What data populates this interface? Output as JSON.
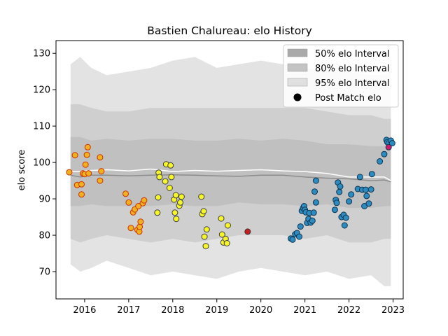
{
  "chart_data": {
    "type": "scatter",
    "title": "Bastien Chalureau: elo History",
    "xlabel": "",
    "ylabel": "elo score",
    "xlim": [
      2015.35,
      2023.23
    ],
    "ylim": [
      62.5,
      133.5
    ],
    "x_ticks": [
      2016,
      2017,
      2018,
      2019,
      2020,
      2021,
      2022,
      2023
    ],
    "x_tick_labels": [
      "2016",
      "2017",
      "2018",
      "2019",
      "2020",
      "2021",
      "2022",
      "2023"
    ],
    "y_ticks": [
      70,
      80,
      90,
      100,
      110,
      120,
      130
    ],
    "y_tick_labels": [
      "70",
      "80",
      "90",
      "100",
      "110",
      "120",
      "130"
    ],
    "legend": {
      "position": "top-right",
      "entries": [
        {
          "label": "50% elo Interval",
          "color": "#aaaaaa",
          "kind": "patch"
        },
        {
          "label": "80% elo Interval",
          "color": "#c4c4c4",
          "kind": "patch"
        },
        {
          "label": "95% elo Interval",
          "color": "#e0e0e0",
          "kind": "patch"
        },
        {
          "label": "Post Match elo",
          "color": "#000000",
          "kind": "marker"
        }
      ]
    },
    "colors": {
      "band95": "#e3e3e3",
      "band80": "#cfcfcf",
      "band50": "#c0c0c0",
      "mean_line": "#ffffff",
      "median_line": "#8c8c8c"
    },
    "bands": {
      "x": [
        2015.68,
        2015.9,
        2016.15,
        2016.5,
        2017.0,
        2017.5,
        2018.0,
        2018.5,
        2019.0,
        2019.5,
        2020.0,
        2020.5,
        2021.0,
        2021.5,
        2022.0,
        2022.5,
        2022.8,
        2022.95
      ],
      "lo95": [
        72.0,
        70.0,
        71.0,
        73.0,
        71.0,
        69.0,
        70.0,
        69.0,
        68.0,
        70.0,
        71.0,
        70.0,
        69.0,
        70.0,
        68.0,
        69.0,
        66.0,
        66.0
      ],
      "hi95": [
        127.0,
        129.0,
        126.0,
        124.0,
        125.0,
        126.0,
        128.0,
        129.0,
        126.0,
        127.0,
        128.0,
        127.0,
        126.0,
        125.0,
        125.0,
        124.0,
        124.0,
        125.0
      ],
      "lo80": [
        79.0,
        78.0,
        79.0,
        80.0,
        79.0,
        78.0,
        79.0,
        78.0,
        79.0,
        80.0,
        80.0,
        80.0,
        79.0,
        80.0,
        78.0,
        78.0,
        79.0,
        79.0
      ],
      "hi80": [
        116.0,
        116.0,
        115.0,
        114.0,
        114.0,
        115.0,
        115.0,
        115.0,
        115.0,
        115.0,
        115.0,
        115.0,
        115.0,
        114.0,
        113.0,
        113.0,
        112.0,
        112.0
      ],
      "lo50": [
        88.0,
        88.0,
        88.5,
        88.0,
        88.0,
        88.0,
        88.5,
        88.0,
        88.0,
        89.0,
        88.5,
        88.5,
        88.0,
        88.5,
        87.5,
        87.5,
        88.0,
        88.0
      ],
      "hi50": [
        107.0,
        107.0,
        106.0,
        106.5,
        106.0,
        106.5,
        106.5,
        106.0,
        106.0,
        106.5,
        106.0,
        106.5,
        106.0,
        105.0,
        105.0,
        104.5,
        104.5,
        104.5
      ],
      "mean": [
        97.5,
        97.5,
        97.8,
        98.0,
        97.7,
        98.2,
        97.5,
        97.8,
        97.6,
        97.8,
        98.0,
        97.7,
        97.5,
        97.0,
        96.0,
        96.0,
        96.0,
        95.0
      ],
      "median": [
        96.5,
        96.0,
        96.5,
        96.5,
        96.3,
        96.5,
        96.6,
        96.5,
        96.3,
        96.2,
        96.5,
        96.5,
        96.0,
        95.7,
        95.5,
        95.0,
        95.2,
        94.7
      ]
    },
    "series": [
      {
        "fill": "#f0b020",
        "edge": "#cc3300",
        "points": [
          [
            2015.65,
            97.3
          ],
          [
            2015.78,
            102.0
          ],
          [
            2015.83,
            93.8
          ],
          [
            2015.93,
            91.2
          ],
          [
            2015.93,
            94.0
          ],
          [
            2015.96,
            97.0
          ],
          [
            2016.0,
            96.8
          ],
          [
            2016.02,
            99.4
          ],
          [
            2016.05,
            102.1
          ],
          [
            2016.07,
            104.2
          ],
          [
            2016.09,
            97.0
          ],
          [
            2016.35,
            101.4
          ],
          [
            2016.35,
            95.0
          ],
          [
            2016.38,
            97.6
          ]
        ]
      },
      {
        "fill": "#f0b020",
        "edge": "#cc3300",
        "points": [
          [
            2016.93,
            91.4
          ],
          [
            2017.0,
            89.0
          ],
          [
            2017.05,
            82.0
          ],
          [
            2017.1,
            86.3
          ],
          [
            2017.14,
            87.1
          ],
          [
            2017.2,
            81.5
          ],
          [
            2017.22,
            88.0
          ],
          [
            2017.24,
            81.0
          ],
          [
            2017.25,
            82.3
          ],
          [
            2017.27,
            83.7
          ],
          [
            2017.32,
            88.8
          ],
          [
            2017.35,
            89.6
          ]
        ]
      },
      {
        "fill": "#f5f52a",
        "edge": "#404040",
        "points": [
          [
            2017.65,
            86.2
          ],
          [
            2017.67,
            90.4
          ],
          [
            2017.68,
            97.2
          ],
          [
            2017.7,
            96.0
          ],
          [
            2017.83,
            94.8
          ],
          [
            2017.85,
            99.5
          ],
          [
            2017.93,
            93.0
          ],
          [
            2017.95,
            99.2
          ],
          [
            2017.97,
            96.0
          ],
          [
            2018.03,
            89.8
          ],
          [
            2018.05,
            86.2
          ],
          [
            2018.07,
            91.0
          ],
          [
            2018.08,
            84.5
          ],
          [
            2018.15,
            88.1
          ],
          [
            2018.17,
            89.0
          ],
          [
            2018.2,
            90.6
          ]
        ]
      },
      {
        "fill": "#f5f52a",
        "edge": "#404040",
        "points": [
          [
            2018.65,
            90.6
          ],
          [
            2018.67,
            85.8
          ],
          [
            2018.7,
            86.6
          ],
          [
            2018.72,
            79.6
          ],
          [
            2018.75,
            77.0
          ],
          [
            2018.77,
            81.6
          ],
          [
            2019.1,
            84.6
          ],
          [
            2019.12,
            80.2
          ],
          [
            2019.15,
            78.0
          ],
          [
            2019.2,
            79.0
          ],
          [
            2019.23,
            77.8
          ],
          [
            2019.25,
            82.7
          ]
        ]
      },
      {
        "fill": "#cc1c1c",
        "edge": "#333333",
        "points": [
          [
            2019.7,
            81.0
          ]
        ]
      },
      {
        "fill": "#2e8bc0",
        "edge": "#0d3550",
        "points": [
          [
            2020.68,
            79.1
          ],
          [
            2020.72,
            78.8
          ],
          [
            2020.78,
            80.3
          ],
          [
            2020.82,
            80.6
          ],
          [
            2020.87,
            79.6
          ],
          [
            2020.9,
            82.4
          ],
          [
            2020.93,
            86.7
          ],
          [
            2020.96,
            87.5
          ],
          [
            2020.98,
            88.0
          ],
          [
            2021.0,
            87.0
          ],
          [
            2021.02,
            86.3
          ],
          [
            2021.05,
            83.4
          ],
          [
            2021.08,
            84.5
          ],
          [
            2021.1,
            86.1
          ],
          [
            2021.13,
            83.5
          ],
          [
            2021.17,
            84.0
          ],
          [
            2021.2,
            86.2
          ],
          [
            2021.25,
            95.0
          ],
          [
            2021.22,
            92.0
          ],
          [
            2021.25,
            89.0
          ]
        ]
      },
      {
        "fill": "#2e8bc0",
        "edge": "#0d3550",
        "points": [
          [
            2021.68,
            87.0
          ],
          [
            2021.7,
            89.7
          ],
          [
            2021.72,
            88.9
          ],
          [
            2021.75,
            94.5
          ],
          [
            2021.78,
            91.9
          ],
          [
            2021.8,
            93.4
          ],
          [
            2021.83,
            85.0
          ],
          [
            2021.88,
            85.6
          ],
          [
            2021.9,
            82.7
          ],
          [
            2021.93,
            84.8
          ],
          [
            2022.0,
            89.3
          ],
          [
            2022.05,
            91.2
          ],
          [
            2022.2,
            92.7
          ],
          [
            2022.25,
            96.0
          ],
          [
            2022.3,
            92.5
          ],
          [
            2022.35,
            88.0
          ],
          [
            2022.38,
            92.5
          ],
          [
            2022.4,
            90.8
          ],
          [
            2022.45,
            88.7
          ],
          [
            2022.5,
            92.6
          ],
          [
            2022.52,
            96.8
          ],
          [
            2022.7,
            100.3
          ],
          [
            2022.8,
            102.3
          ],
          [
            2022.85,
            106.2
          ],
          [
            2022.87,
            105.6
          ],
          [
            2022.9,
            105.3
          ],
          [
            2022.95,
            106.0
          ],
          [
            2022.98,
            105.3
          ]
        ]
      },
      {
        "fill": "#cc1c6a",
        "edge": "#0d3550",
        "points": [
          [
            2022.9,
            104.2
          ]
        ]
      }
    ]
  }
}
